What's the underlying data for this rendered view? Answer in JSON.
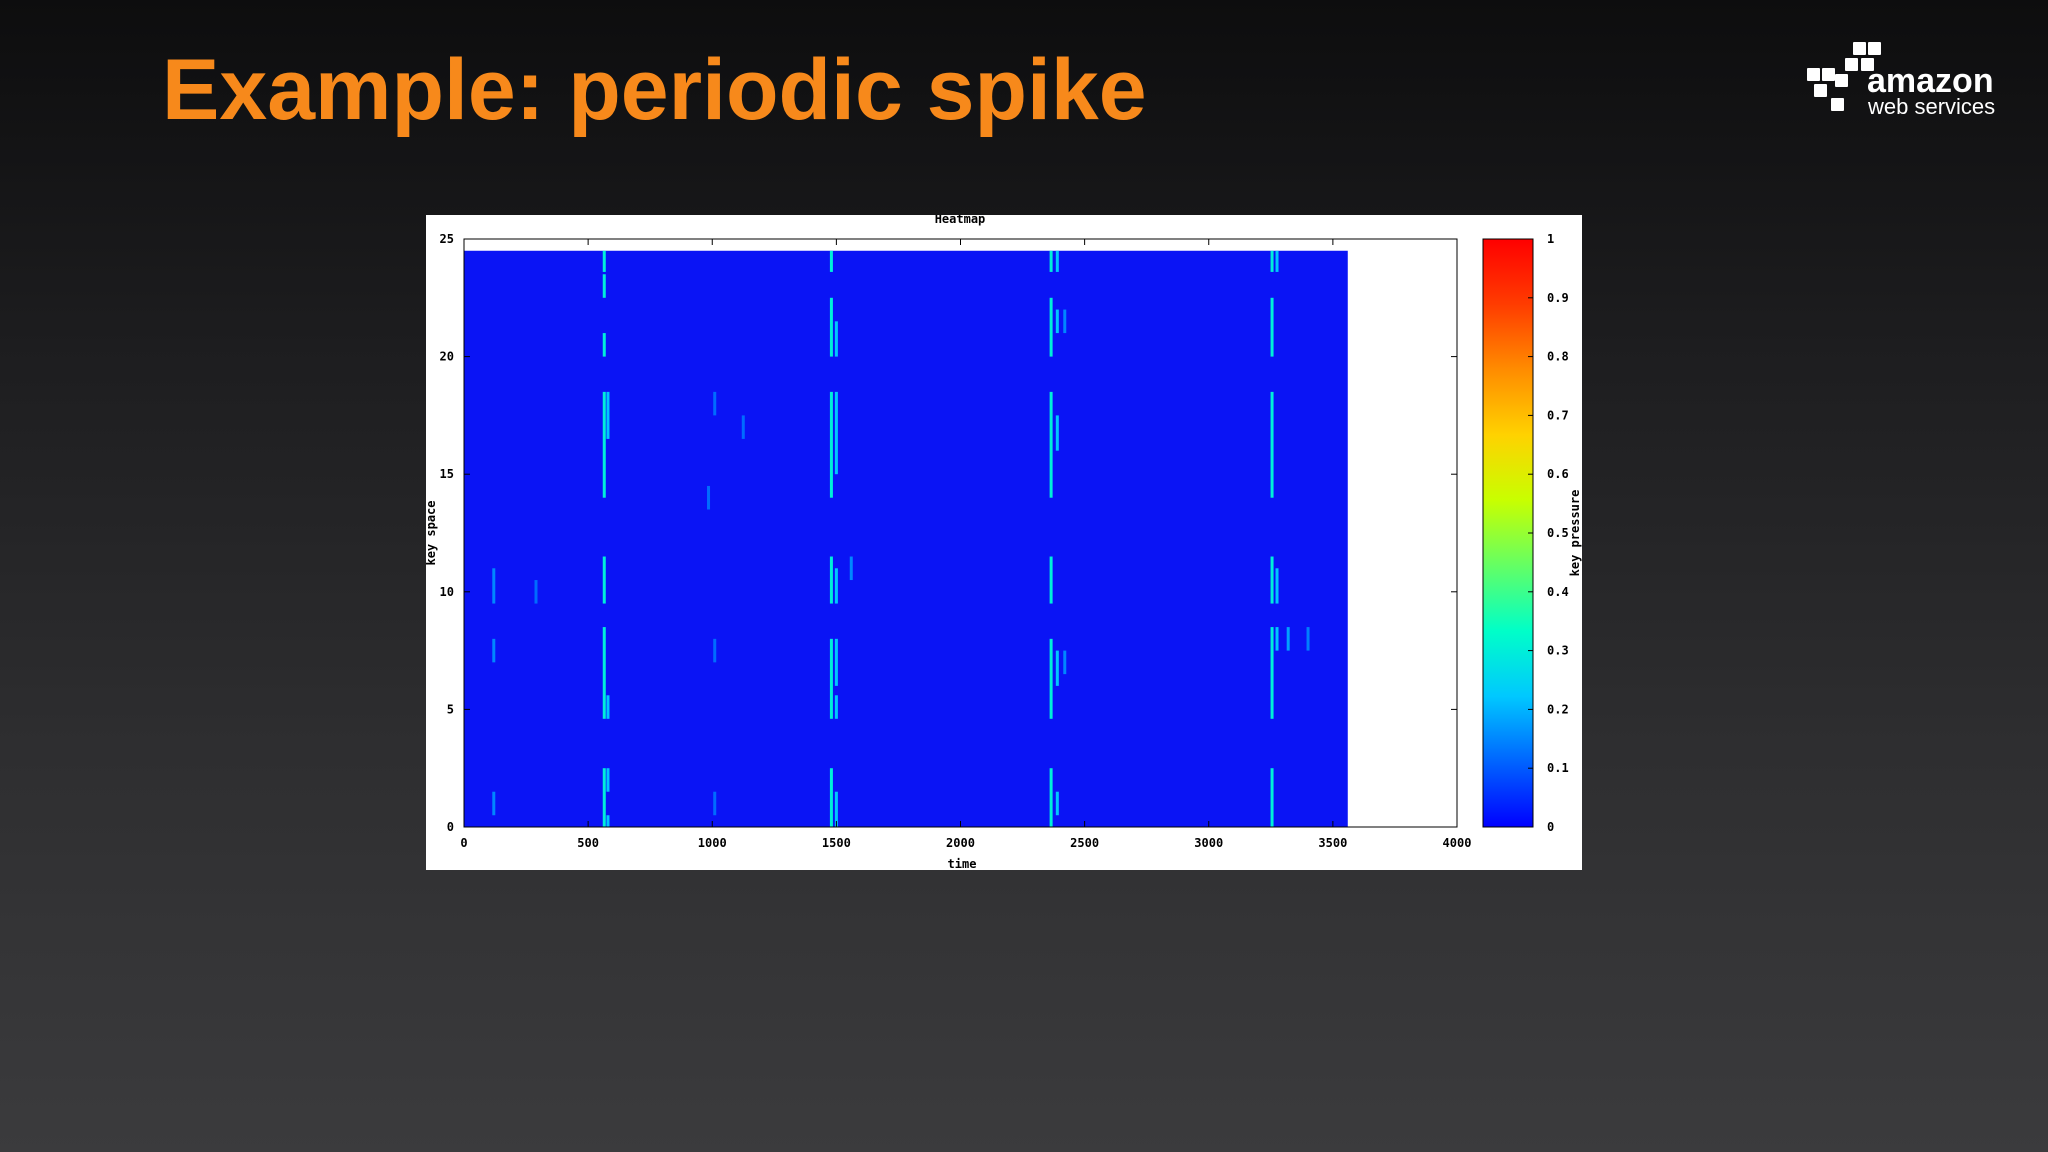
{
  "slide": {
    "title": "Example: periodic spike",
    "logo_text": {
      "line1": "amazon",
      "line2": "web services"
    }
  },
  "colors": {
    "title": "#f7891b",
    "heatmap_base": "#0a14f5",
    "spike": "#35c8ee",
    "spike_dim": "#1a6cf2"
  },
  "chart_data": {
    "type": "heatmap",
    "title": "Heatmap",
    "xlabel": "time",
    "ylabel": "key space",
    "colorbar_label": "key pressure",
    "xlim": [
      0,
      4000
    ],
    "ylim": [
      0,
      25
    ],
    "clim": [
      0,
      1
    ],
    "x_ticks": [
      0,
      500,
      1000,
      1500,
      2000,
      2500,
      3000,
      3500,
      4000
    ],
    "y_ticks": [
      0,
      5,
      10,
      15,
      20,
      25
    ],
    "colorbar_ticks": [
      0,
      0.1,
      0.2,
      0.3,
      0.4,
      0.5,
      0.6,
      0.7,
      0.8,
      0.9,
      1
    ],
    "colorscale": [
      "#0000ff",
      "#0064ff",
      "#00c8ff",
      "#00ffc8",
      "#64ff64",
      "#c8ff00",
      "#ffd200",
      "#ff8c00",
      "#ff3c00",
      "#ff0000"
    ],
    "data_extent": {
      "x": [
        0,
        3560
      ],
      "y": [
        0,
        24.5
      ]
    },
    "background_value": 0.07,
    "spikes": [
      {
        "x": 565,
        "value": 0.3,
        "rows": [
          [
            0,
            2.5
          ],
          [
            4.6,
            8.5
          ],
          [
            9.5,
            11.5
          ],
          [
            14,
            18.5
          ],
          [
            20,
            21
          ],
          [
            22.5,
            23.5
          ],
          [
            23.6,
            24.5
          ]
        ]
      },
      {
        "x": 580,
        "value": 0.22,
        "rows": [
          [
            4.6,
            5.6
          ],
          [
            16.5,
            18.5
          ],
          [
            1.5,
            2.5
          ],
          [
            0,
            0.5
          ]
        ]
      },
      {
        "x": 1480,
        "value": 0.3,
        "rows": [
          [
            0,
            2.5
          ],
          [
            4.6,
            8
          ],
          [
            9.5,
            11.5
          ],
          [
            14,
            18.5
          ],
          [
            20,
            22.5
          ],
          [
            23.6,
            24.5
          ]
        ]
      },
      {
        "x": 1500,
        "value": 0.22,
        "rows": [
          [
            0,
            1.5
          ],
          [
            4.6,
            5.6
          ],
          [
            6,
            8
          ],
          [
            9.5,
            11
          ],
          [
            15,
            18.5
          ],
          [
            20,
            21.5
          ]
        ]
      },
      {
        "x": 2365,
        "value": 0.3,
        "rows": [
          [
            0,
            2.5
          ],
          [
            4.6,
            8
          ],
          [
            9.5,
            11.5
          ],
          [
            14,
            18.5
          ],
          [
            20,
            22.5
          ],
          [
            23.6,
            24.5
          ]
        ]
      },
      {
        "x": 2390,
        "value": 0.22,
        "rows": [
          [
            0.5,
            1.5
          ],
          [
            6,
            7.5
          ],
          [
            16,
            17.5
          ],
          [
            21,
            22
          ],
          [
            23.6,
            24.5
          ]
        ]
      },
      {
        "x": 3255,
        "value": 0.3,
        "rows": [
          [
            0,
            2.5
          ],
          [
            4.6,
            8.5
          ],
          [
            9.5,
            11.5
          ],
          [
            14,
            18.5
          ],
          [
            20,
            22.5
          ],
          [
            23.6,
            24.5
          ]
        ]
      },
      {
        "x": 3275,
        "value": 0.22,
        "rows": [
          [
            9.5,
            11
          ],
          [
            7.5,
            8.5
          ],
          [
            23.6,
            24.5
          ]
        ]
      },
      {
        "x": 3320,
        "value": 0.18,
        "rows": [
          [
            7.5,
            8.5
          ]
        ]
      },
      {
        "x": 120,
        "value": 0.15,
        "rows": [
          [
            0.5,
            1.5
          ],
          [
            7,
            8
          ],
          [
            9.5,
            11
          ]
        ]
      },
      {
        "x": 290,
        "value": 0.12,
        "rows": [
          [
            9.5,
            10.5
          ]
        ]
      },
      {
        "x": 1010,
        "value": 0.12,
        "rows": [
          [
            0.5,
            1.5
          ],
          [
            7,
            8
          ],
          [
            17.5,
            18.5
          ]
        ]
      },
      {
        "x": 985,
        "value": 0.12,
        "rows": [
          [
            13.5,
            14.5
          ]
        ]
      },
      {
        "x": 1125,
        "value": 0.12,
        "rows": [
          [
            16.5,
            17.5
          ]
        ]
      },
      {
        "x": 1560,
        "value": 0.15,
        "rows": [
          [
            10.5,
            11.5
          ]
        ]
      },
      {
        "x": 2420,
        "value": 0.15,
        "rows": [
          [
            21,
            22
          ],
          [
            6.5,
            7.5
          ]
        ]
      },
      {
        "x": 3400,
        "value": 0.14,
        "rows": [
          [
            7.5,
            8.5
          ]
        ]
      }
    ]
  }
}
